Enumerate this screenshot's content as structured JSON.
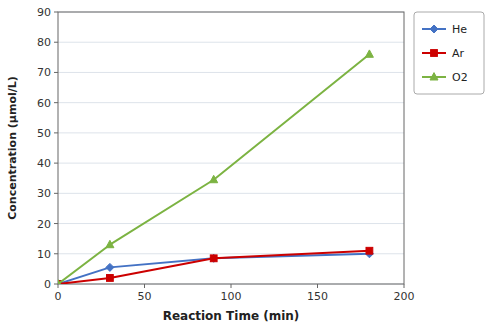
{
  "chart_data": {
    "type": "line",
    "xlabel": "Reaction Time (min)",
    "ylabel": "Concentration (μmol/L)",
    "x": [
      0,
      30,
      90,
      180
    ],
    "series": [
      {
        "name": "He",
        "color": "#4472C4",
        "marker": "diamond",
        "values": [
          0,
          5.5,
          8.5,
          10.0
        ]
      },
      {
        "name": "Ar",
        "color": "#CC0000",
        "marker": "square",
        "values": [
          0,
          2.0,
          8.5,
          11.0
        ]
      },
      {
        "name": "O2",
        "color": "#7CB342",
        "marker": "triangle",
        "values": [
          0,
          13.0,
          34.5,
          76.0
        ]
      }
    ],
    "xlim": [
      0,
      200
    ],
    "ylim": [
      0,
      90
    ],
    "xticks": [
      0,
      50,
      100,
      150,
      200
    ],
    "yticks": [
      0,
      10,
      20,
      30,
      40,
      50,
      60,
      70,
      80,
      90
    ],
    "grid": "y",
    "legend": "right"
  }
}
